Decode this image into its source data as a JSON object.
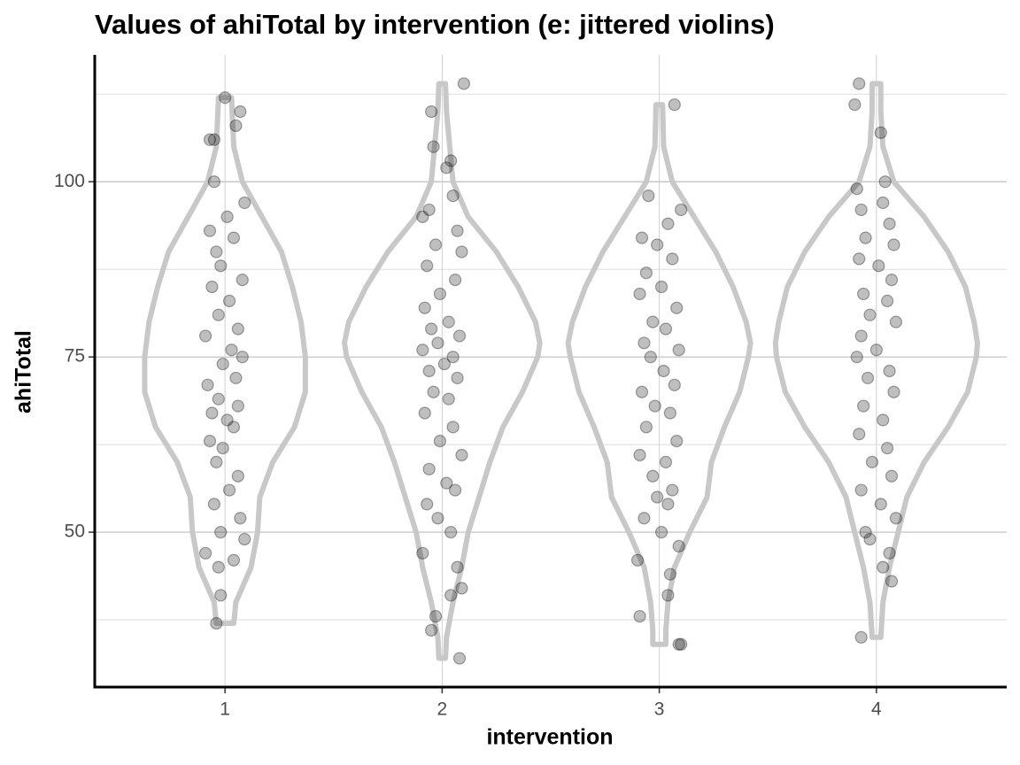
{
  "chart_data": {
    "type": "violin",
    "title": "Values of ahiTotal by intervention (e: jittered violins)",
    "xlabel": "intervention",
    "ylabel": "ahiTotal",
    "xlim": [
      0.4,
      4.6
    ],
    "xticks": [
      1,
      2,
      3,
      4
    ],
    "ylim": [
      27.9,
      118.1
    ],
    "yticks": [
      50,
      75,
      100
    ],
    "minor_yticks": [
      37.5,
      62.5,
      87.5,
      112.5
    ],
    "grid": true,
    "violin_color": "#c8c8c8",
    "point_color": "#000000",
    "groups": [
      {
        "violin_y": [
          37,
          40,
          45,
          50,
          55,
          60,
          65,
          70,
          75,
          80,
          85,
          90,
          95,
          100,
          105,
          112
        ],
        "violin_width": [
          0.04,
          0.05,
          0.12,
          0.15,
          0.16,
          0.22,
          0.32,
          0.37,
          0.37,
          0.35,
          0.31,
          0.26,
          0.17,
          0.08,
          0.04,
          0.03
        ],
        "points_x": [
          1.0,
          1.07,
          1.05,
          0.93,
          0.95,
          0.95,
          1.09,
          1.01,
          0.93,
          1.04,
          0.96,
          0.98,
          1.08,
          0.94,
          1.02,
          0.97,
          1.06,
          0.91,
          1.03,
          1.08,
          0.99,
          1.05,
          0.92,
          0.97,
          1.06,
          0.94,
          1.01,
          1.04,
          0.93,
          0.99,
          0.96,
          1.06,
          1.02,
          0.95,
          1.07,
          0.98,
          1.09,
          0.91,
          1.04,
          0.97,
          0.98,
          0.96
        ],
        "points_y": [
          112,
          110,
          108,
          106,
          106,
          100,
          97,
          95,
          93,
          92,
          90,
          88,
          86,
          85,
          83,
          81,
          79,
          78,
          76,
          75,
          74,
          72,
          71,
          69,
          68,
          67,
          66,
          65,
          63,
          62,
          60,
          58,
          56,
          54,
          52,
          50,
          49,
          47,
          46,
          45,
          41,
          37
        ]
      },
      {
        "violin_y": [
          32,
          35,
          40,
          45,
          50,
          55,
          60,
          65,
          70,
          75,
          77,
          80,
          85,
          90,
          95,
          100,
          110,
          114
        ],
        "violin_width": [
          0.015,
          0.02,
          0.05,
          0.09,
          0.12,
          0.17,
          0.22,
          0.28,
          0.37,
          0.44,
          0.45,
          0.43,
          0.35,
          0.25,
          0.12,
          0.05,
          0.02,
          0.015
        ],
        "points_x": [
          2.1,
          1.95,
          1.96,
          2.04,
          2.02,
          2.05,
          1.94,
          1.91,
          2.07,
          1.97,
          2.09,
          1.93,
          2.06,
          1.99,
          1.92,
          2.03,
          1.95,
          2.08,
          1.98,
          1.91,
          2.05,
          2.01,
          1.94,
          2.07,
          1.96,
          2.03,
          1.92,
          2.05,
          1.99,
          2.09,
          1.94,
          2.02,
          2.06,
          1.93,
          1.98,
          2.04,
          1.91,
          2.07,
          2.09,
          2.04,
          1.97,
          1.95,
          2.08
        ],
        "points_y": [
          114,
          110,
          105,
          103,
          102,
          98,
          96,
          95,
          93,
          91,
          90,
          88,
          86,
          84,
          82,
          80,
          79,
          78,
          77,
          76,
          75,
          74,
          73,
          72,
          70,
          69,
          67,
          65,
          63,
          61,
          59,
          57,
          56,
          54,
          52,
          50,
          47,
          45,
          42,
          41,
          38,
          36,
          32
        ]
      },
      {
        "violin_y": [
          34,
          36,
          40,
          45,
          50,
          55,
          60,
          65,
          70,
          75,
          77,
          80,
          85,
          90,
          95,
          100,
          105,
          111
        ],
        "violin_width": [
          0.03,
          0.03,
          0.04,
          0.07,
          0.14,
          0.22,
          0.24,
          0.3,
          0.37,
          0.41,
          0.42,
          0.4,
          0.34,
          0.26,
          0.16,
          0.06,
          0.02,
          0.015
        ],
        "points_x": [
          3.07,
          2.95,
          3.1,
          3.04,
          2.92,
          2.99,
          3.06,
          2.94,
          3.01,
          2.91,
          3.08,
          2.97,
          3.03,
          2.93,
          3.09,
          2.96,
          3.02,
          3.07,
          2.92,
          2.98,
          3.05,
          2.94,
          3.08,
          2.91,
          3.03,
          2.97,
          3.06,
          2.99,
          3.04,
          2.93,
          3.01,
          3.09,
          2.9,
          3.05,
          3.04,
          2.91,
          3.1,
          3.09
        ],
        "points_y": [
          111,
          98,
          96,
          94,
          92,
          91,
          89,
          87,
          85,
          84,
          82,
          80,
          79,
          77,
          76,
          75,
          73,
          71,
          70,
          68,
          67,
          65,
          63,
          61,
          60,
          58,
          56,
          55,
          54,
          52,
          50,
          48,
          46,
          44,
          41,
          38,
          34,
          34
        ]
      },
      {
        "violin_y": [
          35,
          40,
          45,
          50,
          55,
          60,
          65,
          70,
          75,
          77,
          80,
          85,
          90,
          95,
          100,
          105,
          110,
          114
        ],
        "violin_width": [
          0.02,
          0.03,
          0.06,
          0.1,
          0.14,
          0.22,
          0.33,
          0.42,
          0.46,
          0.465,
          0.45,
          0.41,
          0.33,
          0.22,
          0.08,
          0.03,
          0.02,
          0.02
        ],
        "points_x": [
          3.92,
          3.9,
          4.02,
          4.04,
          3.91,
          4.03,
          3.93,
          4.06,
          3.95,
          4.08,
          3.92,
          4.01,
          4.07,
          3.94,
          4.05,
          3.97,
          4.09,
          3.93,
          4.0,
          3.91,
          4.06,
          3.96,
          4.08,
          3.94,
          4.03,
          3.92,
          4.05,
          3.98,
          4.07,
          3.93,
          4.02,
          4.09,
          3.95,
          3.97,
          4.06,
          4.03,
          4.07,
          3.93
        ],
        "points_y": [
          114,
          111,
          107,
          100,
          99,
          97,
          96,
          94,
          92,
          91,
          89,
          88,
          86,
          84,
          83,
          81,
          80,
          78,
          76,
          75,
          73,
          72,
          70,
          68,
          66,
          64,
          62,
          60,
          58,
          56,
          54,
          52,
          50,
          49,
          47,
          45,
          43,
          35
        ]
      }
    ]
  }
}
